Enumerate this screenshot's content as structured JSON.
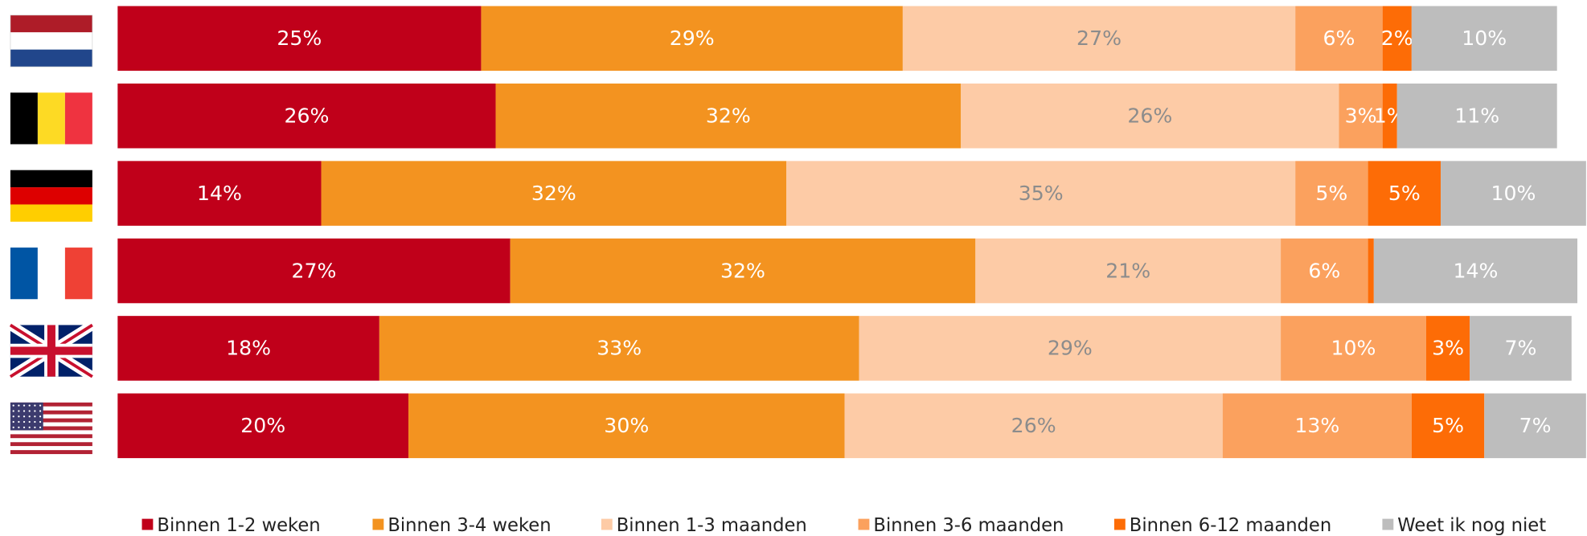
{
  "chart_data": {
    "type": "stacked-bar-horizontal",
    "categories": [
      null,
      null,
      null,
      null,
      null,
      null
    ],
    "xlim": [
      0,
      100
    ],
    "series": [
      {
        "name": "Binnen 1-2 weken",
        "color": "#c0001a",
        "values": [
          25,
          26,
          14,
          27,
          18,
          20
        ],
        "value_labels": [
          "25%",
          "26%",
          "14%",
          "27%",
          "18%",
          "20%"
        ]
      },
      {
        "name": "Binnen 3-4 weken",
        "color": "#f39320",
        "values": [
          29,
          32,
          32,
          32,
          33,
          30
        ],
        "value_labels": [
          "29%",
          "32%",
          "32%",
          "32%",
          "33%",
          "30%"
        ]
      },
      {
        "name": "Binnen 1-3 maanden",
        "color": "#fdcba6",
        "values": [
          27,
          26,
          35,
          21,
          29,
          26
        ],
        "value_labels": [
          "27%",
          "26%",
          "35%",
          "21%",
          "29%",
          "26%"
        ]
      },
      {
        "name": "Binnen 3-6 maanden",
        "color": "#fba15e",
        "values": [
          6,
          3,
          5,
          6,
          10,
          13
        ],
        "value_labels": [
          "6%",
          "3%",
          "5%",
          "6%",
          "10%",
          "13%"
        ]
      },
      {
        "name": "Binnen 6-12 maanden",
        "color": "#fd6c06",
        "values": [
          2,
          1,
          5,
          0.4,
          3,
          5
        ],
        "value_labels": [
          "2%",
          "1%",
          "5%",
          null,
          "3%",
          "5%"
        ]
      },
      {
        "name": "Weet ik nog niet",
        "color": "#bdbdbd",
        "values": [
          10,
          11,
          10,
          14,
          7,
          7
        ],
        "value_labels": [
          "10%",
          "11%",
          "10%",
          "14%",
          "7%",
          "7%"
        ]
      }
    ]
  }
}
